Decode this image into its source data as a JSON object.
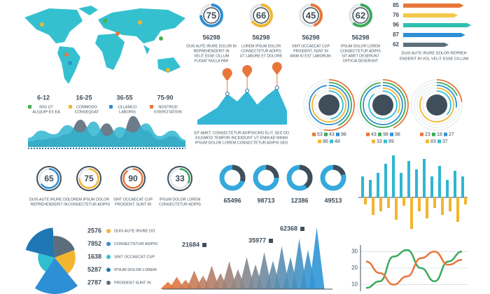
{
  "map_legend": [
    {
      "range": "6-12",
      "lines": [
        "NISI UT",
        "ALIQUIP EX EA"
      ],
      "color": "#4caf50"
    },
    {
      "range": "16-25",
      "lines": [
        "COMMODO",
        "CONSEQUAT"
      ],
      "color": "#f2b530"
    },
    {
      "range": "36-55",
      "lines": [
        "ULLAMCO",
        "LABORIS"
      ],
      "color": "#2d8fd5"
    },
    {
      "range": "75-90",
      "lines": [
        "NOSTRUD",
        "EXERCITATION"
      ],
      "color": "#e8763a"
    }
  ],
  "waves": {
    "series": [
      {
        "color": "#5c6e7c",
        "values": [
          6,
          8,
          10,
          14,
          30,
          12,
          26,
          10,
          34,
          18,
          8,
          12,
          6
        ]
      },
      {
        "color": "#2fb6d2",
        "values": [
          10,
          18,
          14,
          24,
          16,
          28,
          12,
          22,
          16,
          26,
          12,
          18,
          8
        ]
      }
    ]
  },
  "top_donuts": [
    {
      "value": 75,
      "color": "#2d8fd5",
      "number": 56298,
      "lines": [
        "DUIS AUTE IRURE DOLOR IN",
        "REPREHENDERIT IN",
        "VELIT ESSE CILLUM",
        "FUGIAT NULLA PAR"
      ]
    },
    {
      "value": 66,
      "color": "#f2b530",
      "number": 56298,
      "lines": [
        "LOREM IPSUM DOLOR",
        "CONSECTETUR ADIPIS",
        "UT LABORE ET DOLORE"
      ]
    },
    {
      "value": 45,
      "color": "#e8763a",
      "number": 56298,
      "lines": [
        "SINT OCCAECAT CUP",
        "PROIDENT, SUNT IN",
        "ANIM ID EST LABORUM."
      ]
    },
    {
      "value": 62,
      "color": "#3aaa5a",
      "number": 56298,
      "lines": [
        "IPSUM DOLOR LOREM",
        "CONSECTETUR ADIPIS",
        "SIT AMET DESERUNT",
        "OFFICIA DESERUNT"
      ]
    }
  ],
  "hbars": {
    "items": [
      {
        "value": 85,
        "color": "#e8763a"
      },
      {
        "value": 76,
        "color": "#f2c94c"
      },
      {
        "value": 96,
        "color": "#2fbfb0"
      },
      {
        "value": 87,
        "color": "#2d8fd5"
      },
      {
        "value": 62,
        "color": "#5c6e7c"
      }
    ],
    "lines": [
      "DUIS AUTE IRURE DOLOR REPREH",
      "ENDERIT IN VOL VELIT ESSE CILLUM"
    ]
  },
  "peaks": {
    "color": "#35b6d6",
    "values": [
      6,
      14,
      22,
      40,
      30,
      44,
      26,
      38,
      48,
      18
    ],
    "lines": [
      "SIT AMET, CONSECTETUR ADIPISCING ELIT, SED DO",
      "EIUSMOD TEMPOR INCIDIDUNT UT ENIM AD MINIM",
      "IPSUM DOLOR LOREM CONSECTETUR ADIPIS SED"
    ]
  },
  "rings": [
    {
      "value": 43,
      "legend": [
        {
          "value": 53,
          "color": "#e8763a"
        },
        {
          "value": 43,
          "color": "#3aaa5a"
        },
        {
          "value": 98,
          "color": "#2d8fd5"
        },
        {
          "value": 86,
          "color": "#f2b530"
        },
        {
          "value": 48,
          "color": "#2fbfd0"
        }
      ]
    },
    {
      "value": 55,
      "legend": [
        {
          "value": 43,
          "color": "#e8763a"
        },
        {
          "value": 98,
          "color": "#3aaa5a"
        },
        {
          "value": 98,
          "color": "#2d8fd5"
        },
        {
          "value": 33,
          "color": "#f2b530"
        },
        {
          "value": 89,
          "color": "#2fbfd0"
        }
      ]
    },
    {
      "value": 62,
      "legend": [
        {
          "value": 23,
          "color": "#e8763a"
        },
        {
          "value": 18,
          "color": "#3aaa5a"
        },
        {
          "value": 27,
          "color": "#2d8fd5"
        },
        {
          "value": 83,
          "color": "#f2b530"
        },
        {
          "value": 37,
          "color": "#2fbfd0"
        }
      ]
    }
  ],
  "mid_donuts": [
    {
      "value": 65,
      "color": "#2d8fd5",
      "lines": [
        "DUIS AUTE IRURE DO",
        "REPREHENDERIT IN"
      ]
    },
    {
      "value": 75,
      "color": "#f2b530",
      "lines": [
        "LOREM IPSUM DOLOR",
        "CONSECTETUR ADIPIS"
      ]
    },
    {
      "value": 90,
      "color": "#e8763a",
      "lines": [
        "SINT OCCAECAT CUP",
        "PROIDENT, SUNT IN"
      ]
    },
    {
      "value": 33,
      "color": "#3aaa5a",
      "lines": [
        "IPSUM DOLOR LOREM",
        "CONSECTETUR ADIPIS"
      ]
    }
  ],
  "seg_donuts": [
    {
      "number": 65496,
      "share": 30
    },
    {
      "number": 98713,
      "share": 25
    },
    {
      "number": 12386,
      "share": 40
    },
    {
      "number": 49513,
      "share": 20
    }
  ],
  "updown": {
    "up_color": "#2fb6d2",
    "down_color": "#f2b530",
    "up": [
      30,
      25,
      35,
      48,
      60,
      35,
      52,
      40,
      55,
      30,
      45,
      25,
      38,
      30
    ],
    "down": [
      -10,
      -25,
      -20,
      -15,
      -32,
      -12,
      -45,
      -20,
      -30,
      -15,
      -25,
      -20,
      -35,
      -10
    ]
  },
  "rose": {
    "items": [
      {
        "value": 2576,
        "label": "DUIS AUTE IRURE DO",
        "color": "#f2b530"
      },
      {
        "value": 7852,
        "label": "CONSECTETUR ADIPIS",
        "color": "#2d8fd5"
      },
      {
        "value": 1638,
        "label": "SINT OCCAECAT CUP",
        "color": "#2fbfd0"
      },
      {
        "value": 5287,
        "label": "IPSUM DOLOR LOREM",
        "color": "#1f77b4"
      },
      {
        "value": 2787,
        "label": "PROIDENT SUNT IN",
        "color": "#5c6e7c"
      }
    ]
  },
  "triangles": {
    "values": [
      12,
      20,
      15,
      30,
      22,
      38,
      26,
      45,
      32,
      52,
      40,
      60,
      46,
      70,
      52,
      82,
      64,
      100
    ],
    "callouts": [
      21684,
      35977,
      62368
    ]
  },
  "line_chart": {
    "ylim": [
      6,
      34
    ],
    "yticks": [
      10,
      20,
      30
    ],
    "series": [
      {
        "color": "#3aaa5a",
        "values": [
          8,
          12,
          27,
          31,
          20,
          12,
          24,
          30
        ]
      },
      {
        "color": "#e8763a",
        "values": [
          24,
          17,
          10,
          15,
          26,
          30,
          22,
          25
        ]
      }
    ]
  }
}
